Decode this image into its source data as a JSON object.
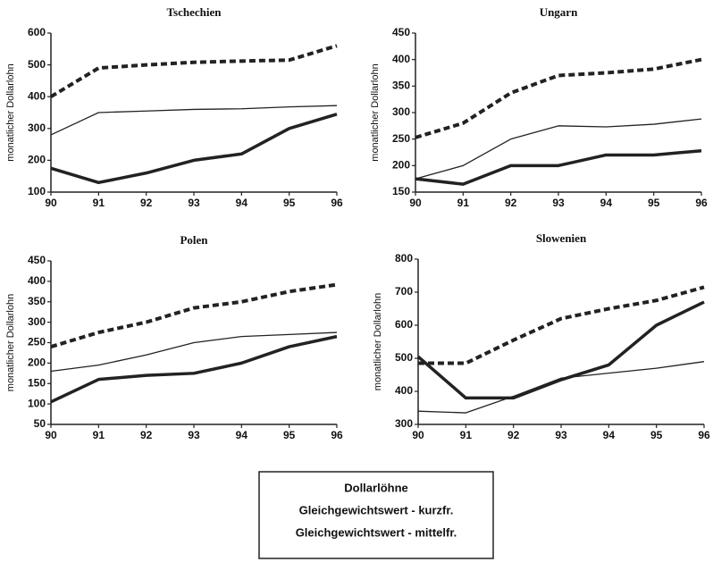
{
  "chart_data": [
    {
      "type": "line",
      "title": "Tschechien",
      "ylabel": "monatlicher Dollarlohn",
      "categories": [
        "90",
        "91",
        "92",
        "93",
        "94",
        "95",
        "96"
      ],
      "ylim": [
        100,
        600
      ],
      "yticks": [
        100,
        200,
        300,
        400,
        500,
        600
      ],
      "series": [
        {
          "style": "thick",
          "color": "#222222",
          "values": [
            175,
            130,
            160,
            200,
            220,
            300,
            345
          ]
        },
        {
          "style": "thin",
          "color": "#222222",
          "values": [
            280,
            350,
            355,
            360,
            362,
            368,
            372
          ]
        },
        {
          "style": "dashed",
          "color": "#222222",
          "values": [
            400,
            490,
            500,
            508,
            512,
            515,
            560
          ]
        }
      ]
    },
    {
      "type": "line",
      "title": "Ungarn",
      "ylabel": "monatlicher Dollarlohn",
      "categories": [
        "90",
        "91",
        "92",
        "93",
        "94",
        "95",
        "96"
      ],
      "ylim": [
        150,
        450
      ],
      "yticks": [
        150,
        200,
        250,
        300,
        350,
        400,
        450
      ],
      "series": [
        {
          "style": "thick",
          "color": "#222222",
          "values": [
            175,
            165,
            200,
            200,
            220,
            220,
            228
          ]
        },
        {
          "style": "thin",
          "color": "#222222",
          "values": [
            175,
            200,
            250,
            275,
            273,
            278,
            288
          ]
        },
        {
          "style": "dashed",
          "color": "#222222",
          "values": [
            253,
            280,
            337,
            370,
            375,
            382,
            400
          ]
        }
      ]
    },
    {
      "type": "line",
      "title": "Polen",
      "ylabel": "monatlicher Dollarlohn",
      "categories": [
        "90",
        "91",
        "92",
        "93",
        "94",
        "95",
        "96"
      ],
      "ylim": [
        50,
        450
      ],
      "yticks": [
        50,
        100,
        150,
        200,
        250,
        300,
        350,
        400,
        450
      ],
      "series": [
        {
          "style": "thick",
          "color": "#222222",
          "values": [
            105,
            160,
            170,
            175,
            200,
            240,
            265
          ]
        },
        {
          "style": "thin",
          "color": "#222222",
          "values": [
            180,
            195,
            220,
            250,
            265,
            270,
            275
          ]
        },
        {
          "style": "dashed",
          "color": "#222222",
          "values": [
            240,
            275,
            300,
            335,
            350,
            375,
            392
          ]
        }
      ]
    },
    {
      "type": "line",
      "title": "Slowenien",
      "ylabel": "monatlicher Dollarlohn",
      "categories": [
        "90",
        "91",
        "92",
        "93",
        "94",
        "95",
        "96"
      ],
      "ylim": [
        300,
        800
      ],
      "yticks": [
        300,
        400,
        500,
        600,
        700,
        800
      ],
      "series": [
        {
          "style": "thick",
          "color": "#222222",
          "values": [
            505,
            380,
            380,
            435,
            480,
            600,
            670
          ]
        },
        {
          "style": "thin",
          "color": "#222222",
          "values": [
            340,
            335,
            385,
            440,
            455,
            470,
            490
          ]
        },
        {
          "style": "dashed",
          "color": "#222222",
          "values": [
            485,
            485,
            555,
            620,
            650,
            675,
            715
          ]
        }
      ]
    }
  ],
  "legend": {
    "entries": [
      "Dollarlöhne",
      "Gleichgewichtswert - kurzfr.",
      "Gleichgewichtswert - mittelfr."
    ]
  }
}
